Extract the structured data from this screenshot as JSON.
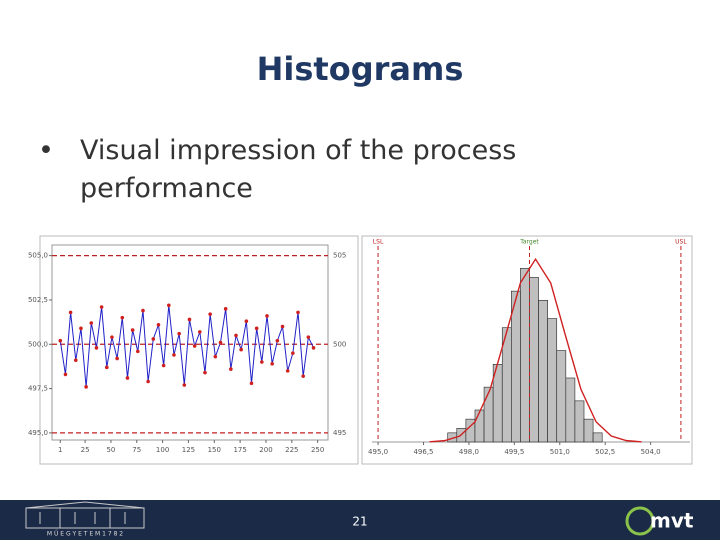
{
  "slide": {
    "title": "Histograms",
    "bullets": [
      "Visual impression of the process performance"
    ],
    "page_number": "21",
    "footer_left": "M Ű E G Y E T E M   1 7 8 2",
    "footer_right": "mvt"
  },
  "chart_data": [
    {
      "type": "line",
      "color": "#2020c8",
      "marker_color": "#d02020",
      "x": [
        1,
        6,
        11,
        16,
        21,
        26,
        31,
        36,
        41,
        46,
        51,
        56,
        61,
        66,
        71,
        76,
        81,
        86,
        91,
        96,
        101,
        106,
        111,
        116,
        121,
        126,
        131,
        136,
        141,
        146,
        151,
        156,
        161,
        166,
        171,
        176,
        181,
        186,
        191,
        196,
        201,
        206,
        211,
        216,
        221,
        226,
        231,
        236,
        241,
        246
      ],
      "values": [
        500.2,
        498.3,
        501.8,
        499.1,
        500.9,
        497.6,
        501.2,
        499.8,
        502.1,
        498.7,
        500.4,
        499.2,
        501.5,
        498.1,
        500.8,
        499.6,
        501.9,
        497.9,
        500.3,
        501.1,
        498.8,
        502.2,
        499.4,
        500.6,
        497.7,
        501.4,
        499.9,
        500.7,
        498.4,
        501.7,
        499.3,
        500.1,
        502.0,
        498.6,
        500.5,
        499.7,
        501.3,
        497.8,
        500.9,
        499.0,
        501.6,
        498.9,
        500.2,
        501.0,
        498.5,
        499.5,
        501.8,
        498.2,
        500.4,
        499.8
      ],
      "xlim": [
        -7,
        260
      ],
      "xticks": [
        1,
        25,
        50,
        75,
        100,
        125,
        150,
        175,
        200,
        225,
        250
      ],
      "ylim": [
        494.6,
        505.6
      ],
      "yticks": [
        {
          "value": 495,
          "label": "495,0"
        },
        {
          "value": 497.5,
          "label": "497,5"
        },
        {
          "value": 500,
          "label": "500,0"
        },
        {
          "value": 502.5,
          "label": "502,5"
        },
        {
          "value": 505,
          "label": "505,0"
        }
      ],
      "y2ticks": [
        495,
        500,
        505
      ],
      "limit_color": "#c02020"
    },
    {
      "type": "histogram",
      "color": "#c0c0c0",
      "fit_color": "#d02020",
      "bins": [
        497.3,
        497.6,
        497.9,
        498.2,
        498.5,
        498.8,
        499.1,
        499.4,
        499.7,
        500.0,
        500.3,
        500.6,
        500.9,
        501.2,
        501.5,
        501.8,
        502.1,
        502.4
      ],
      "counts": [
        2,
        3,
        5,
        7,
        12,
        17,
        25,
        33,
        38,
        36,
        31,
        27,
        20,
        14,
        9,
        5,
        2
      ],
      "fit": {
        "x": [
          496.7,
          497.2,
          497.7,
          498.2,
          498.7,
          499.2,
          499.7,
          500.2,
          500.7,
          501.2,
          501.7,
          502.2,
          502.7,
          503.2,
          503.7
        ],
        "values": [
          0.04,
          0.3,
          1.3,
          4.4,
          11.5,
          23,
          34.8,
          40,
          34.8,
          23,
          11.5,
          4.4,
          1.3,
          0.3,
          0.04
        ]
      },
      "xlim": [
        494.8,
        505.3
      ],
      "ylim": [
        0,
        42
      ],
      "xticks": [
        {
          "value": 495,
          "label": "495,0"
        },
        {
          "value": 496.5,
          "label": "496,5"
        },
        {
          "value": 498,
          "label": "498,0"
        },
        {
          "value": 499.5,
          "label": "499,5"
        },
        {
          "value": 501,
          "label": "501,0"
        },
        {
          "value": 502.5,
          "label": "502,5"
        },
        {
          "value": 504,
          "label": "504,0"
        }
      ],
      "spec_lines": [
        {
          "value": 495,
          "label": "LSL"
        },
        {
          "value": 500,
          "label": "Target"
        },
        {
          "value": 505,
          "label": "USL"
        }
      ],
      "spec_color": "#c02020"
    }
  ]
}
